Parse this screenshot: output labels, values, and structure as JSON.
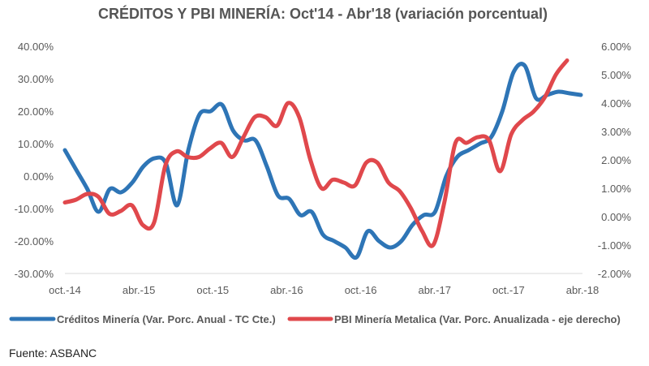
{
  "chart_data": {
    "type": "line",
    "title": "CRÉDITOS Y PBI MINERÍA: Oct'14 - Abr'18 (variación porcentual)",
    "x_labels": [
      "oct.-14",
      "abr.-15",
      "oct.-15",
      "abr.-16",
      "oct.-16",
      "abr.-17",
      "oct.-17",
      "abr.-18"
    ],
    "left_axis": {
      "ylim": [
        -30,
        40
      ],
      "ticks": [
        "-30.00%",
        "-20.00%",
        "-10.00%",
        "0.00%",
        "10.00%",
        "20.00%",
        "30.00%",
        "40.00%"
      ]
    },
    "right_axis": {
      "ylim": [
        -2,
        6
      ],
      "ticks": [
        "-2.00%",
        "-1.00%",
        "0.00%",
        "1.00%",
        "2.00%",
        "3.00%",
        "4.00%",
        "5.00%",
        "6.00%"
      ]
    },
    "grid": false,
    "legend_position": "bottom",
    "series": [
      {
        "name": "Créditos Minería (Var. Porc. Anual - TC Cte.)",
        "axis": "left",
        "color": "#2E75B6",
        "values": [
          8,
          2,
          -4,
          -11,
          -4,
          -5,
          -2,
          3,
          5.5,
          4,
          -9,
          8,
          19,
          20,
          22,
          14,
          11,
          11,
          3,
          -6,
          -7,
          -12,
          -11,
          -18,
          -20,
          -22,
          -25,
          -17,
          -20,
          -22,
          -20,
          -15,
          -12,
          -11,
          0,
          6,
          8,
          10,
          12,
          20,
          32,
          34,
          24,
          25,
          26,
          25.5,
          25
        ]
      },
      {
        "name": "PBI Minería Metalica (Var. Porc. Anualizada - eje derecho)",
        "axis": "right",
        "color": "#E0484C",
        "values": [
          0.5,
          0.6,
          0.8,
          0.7,
          0.1,
          0.2,
          0.4,
          -0.3,
          -0.2,
          1.8,
          2.3,
          2.1,
          2.1,
          2.4,
          2.6,
          2.1,
          2.8,
          3.5,
          3.5,
          3.2,
          4.0,
          3.5,
          2.0,
          1.0,
          1.3,
          1.2,
          1.1,
          1.9,
          1.9,
          1.2,
          0.9,
          0.3,
          -0.5,
          -1.0,
          0.5,
          2.6,
          2.6,
          2.8,
          2.7,
          1.6,
          2.9,
          3.4,
          3.7,
          4.2,
          5.0,
          5.5
        ]
      }
    ]
  },
  "source_text": "Fuente: ASBANC"
}
